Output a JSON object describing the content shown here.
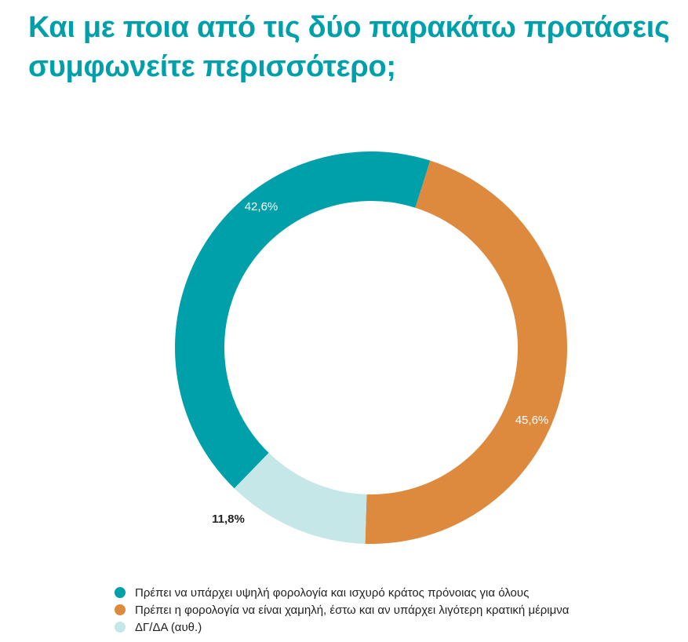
{
  "chart_data": {
    "type": "pie",
    "title": "Και με ποια από τις δύο παρακάτω προτάσεις συμφωνείτε περισσότερο;",
    "donut": true,
    "slices": [
      {
        "name": "Πρέπει να υπάρχει υψηλή φορολογία και ισχυρό κράτος πρόνοιας για όλους",
        "value": 42.6,
        "label": "42,6%",
        "color": "#00a0aa"
      },
      {
        "name": "Πρέπει η φορολογία να είναι χαμηλή, έστω και αν υπάρχει λιγότερη κρατική μέριμνα",
        "value": 45.6,
        "label": "45,6%",
        "color": "#de8a3e"
      },
      {
        "name": "ΔΓ/ΔΑ (αυθ.)",
        "value": 11.8,
        "label": "11,8%",
        "color": "#c6e7e8"
      }
    ],
    "legend_position": "bottom"
  }
}
